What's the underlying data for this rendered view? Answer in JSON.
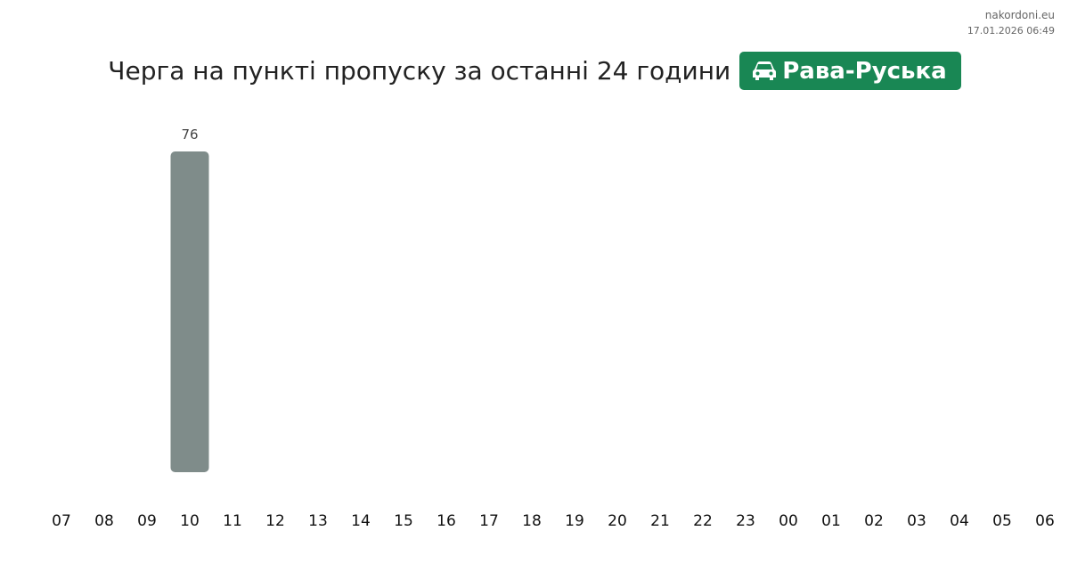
{
  "source": {
    "site": "nakordoni.eu",
    "datetime": "17.01.2026 06:49"
  },
  "header": {
    "title": "Черга на пункті пропуску за останні 24 години",
    "checkpoint": "Рава-Руська",
    "checkpoint_icon": "car-icon",
    "badge_color": "#198754"
  },
  "chart_data": {
    "type": "bar",
    "title": "Черга на пункті пропуску за останні 24 години",
    "categories": [
      "07",
      "08",
      "09",
      "10",
      "11",
      "12",
      "13",
      "14",
      "15",
      "16",
      "17",
      "18",
      "19",
      "20",
      "21",
      "22",
      "23",
      "00",
      "01",
      "02",
      "03",
      "04",
      "05",
      "06"
    ],
    "values": [
      0,
      0,
      0,
      76,
      0,
      0,
      0,
      0,
      0,
      0,
      0,
      0,
      0,
      0,
      0,
      0,
      0,
      0,
      0,
      0,
      0,
      0,
      0,
      0
    ],
    "ylim": [
      0,
      76
    ],
    "bar_color": "#7f8c8a",
    "grid": false,
    "xlabel": "",
    "ylabel": ""
  }
}
